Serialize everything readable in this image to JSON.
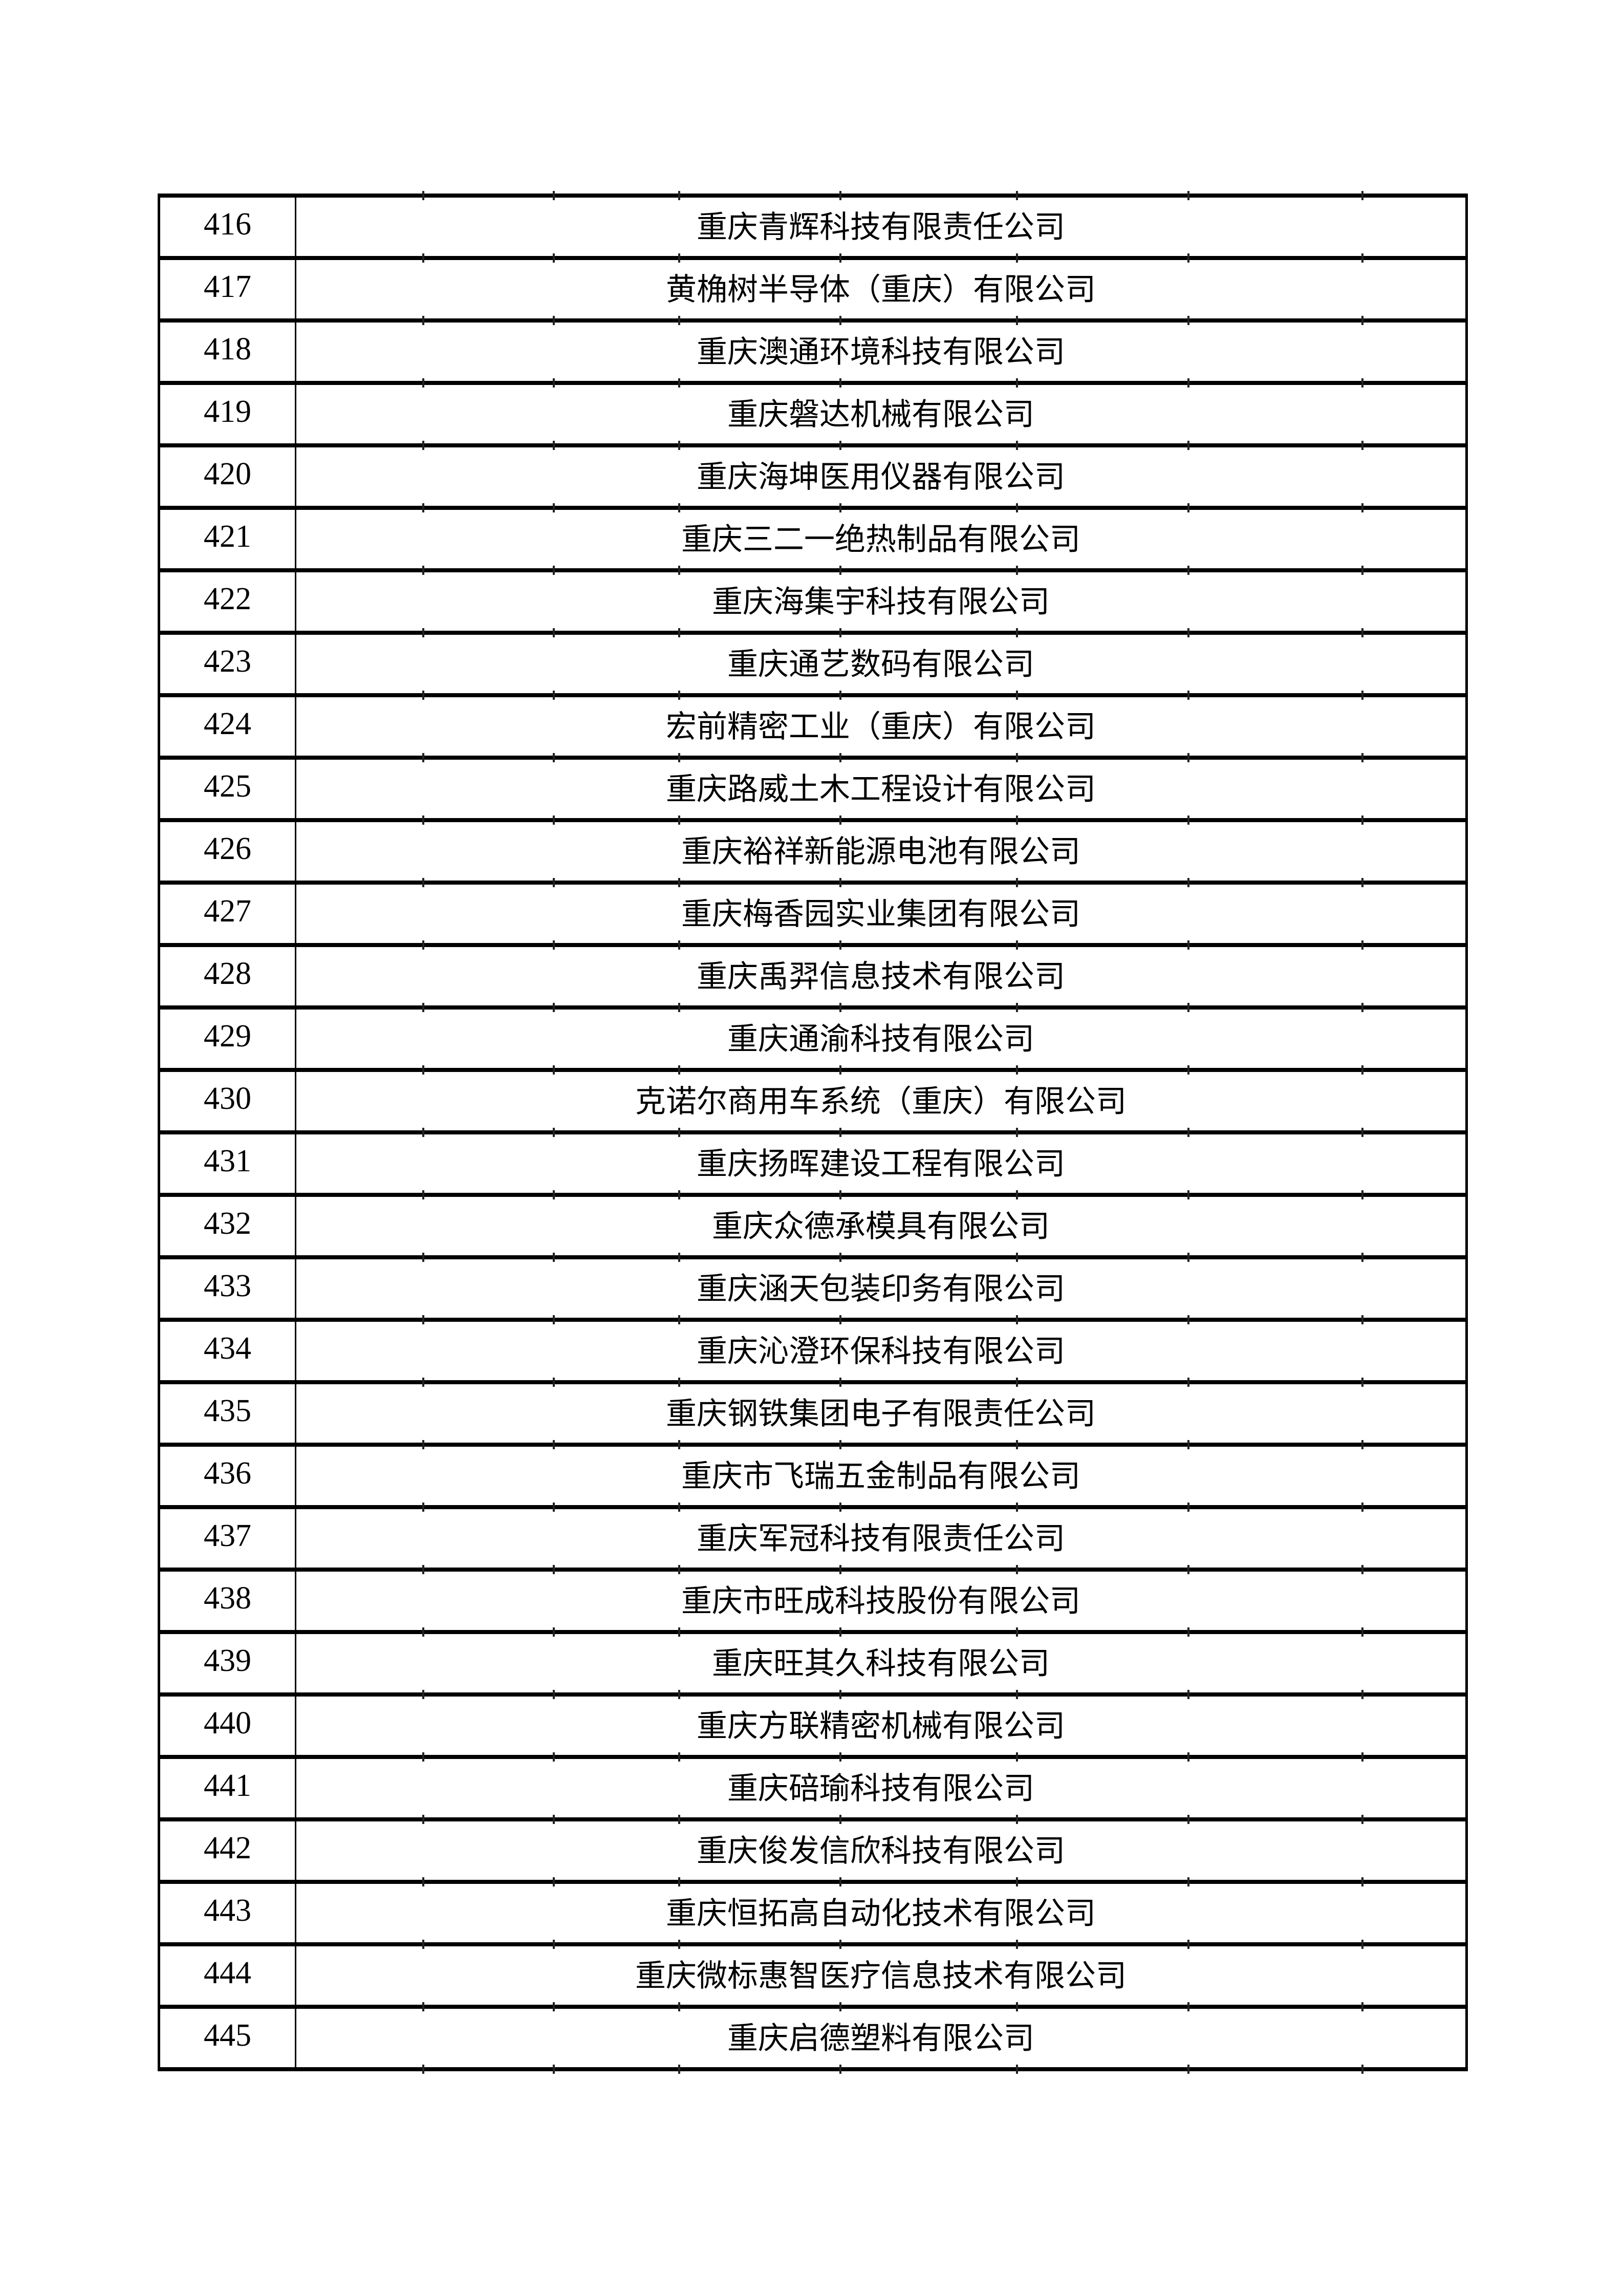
{
  "page": {
    "background_color": "#ffffff",
    "text_color": "#000000",
    "table_border_color": "#000000",
    "tick_mark_color": "#222222"
  },
  "table": {
    "rows": [
      {
        "no": "416",
        "name": "重庆青辉科技有限责任公司"
      },
      {
        "no": "417",
        "name": "黄桷树半导体（重庆）有限公司"
      },
      {
        "no": "418",
        "name": "重庆澳通环境科技有限公司"
      },
      {
        "no": "419",
        "name": "重庆磐达机械有限公司"
      },
      {
        "no": "420",
        "name": "重庆海坤医用仪器有限公司"
      },
      {
        "no": "421",
        "name": "重庆三二一绝热制品有限公司"
      },
      {
        "no": "422",
        "name": "重庆海集宇科技有限公司"
      },
      {
        "no": "423",
        "name": "重庆通艺数码有限公司"
      },
      {
        "no": "424",
        "name": "宏前精密工业（重庆）有限公司"
      },
      {
        "no": "425",
        "name": "重庆路威土木工程设计有限公司"
      },
      {
        "no": "426",
        "name": "重庆裕祥新能源电池有限公司"
      },
      {
        "no": "427",
        "name": "重庆梅香园实业集团有限公司"
      },
      {
        "no": "428",
        "name": "重庆禹羿信息技术有限公司"
      },
      {
        "no": "429",
        "name": "重庆通渝科技有限公司"
      },
      {
        "no": "430",
        "name": "克诺尔商用车系统（重庆）有限公司"
      },
      {
        "no": "431",
        "name": "重庆扬晖建设工程有限公司"
      },
      {
        "no": "432",
        "name": "重庆众德承模具有限公司"
      },
      {
        "no": "433",
        "name": "重庆涵天包装印务有限公司"
      },
      {
        "no": "434",
        "name": "重庆沁澄环保科技有限公司"
      },
      {
        "no": "435",
        "name": "重庆钢铁集团电子有限责任公司"
      },
      {
        "no": "436",
        "name": "重庆市飞瑞五金制品有限公司"
      },
      {
        "no": "437",
        "name": "重庆军冠科技有限责任公司"
      },
      {
        "no": "438",
        "name": "重庆市旺成科技股份有限公司"
      },
      {
        "no": "439",
        "name": "重庆旺其久科技有限公司"
      },
      {
        "no": "440",
        "name": "重庆方联精密机械有限公司"
      },
      {
        "no": "441",
        "name": "重庆碚瑜科技有限公司"
      },
      {
        "no": "442",
        "name": "重庆俊发信欣科技有限公司"
      },
      {
        "no": "443",
        "name": "重庆恒拓高自动化技术有限公司"
      },
      {
        "no": "444",
        "name": "重庆微标惠智医疗信息技术有限公司"
      },
      {
        "no": "445",
        "name": "重庆启德塑料有限公司"
      }
    ]
  }
}
